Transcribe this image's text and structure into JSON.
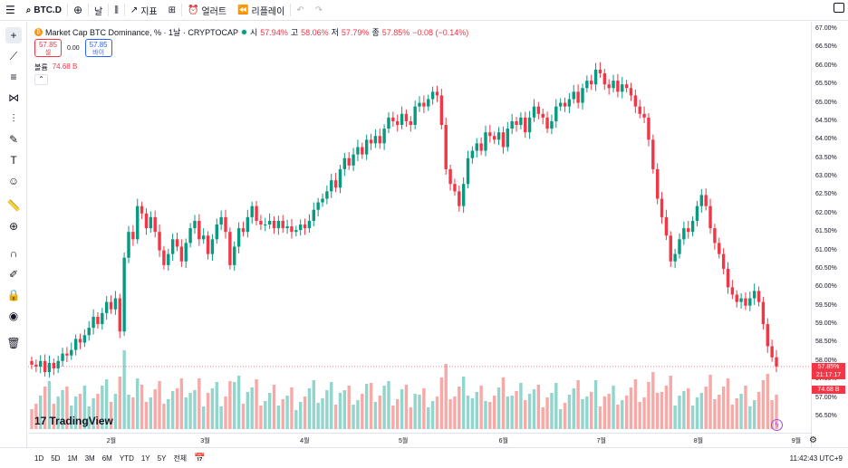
{
  "topbar": {
    "symbol": "BTC.D",
    "interval": "날",
    "indicators_label": "지표",
    "alert_label": "얼러트",
    "replay_label": "리플레이"
  },
  "legend": {
    "title": "Market Cap BTC Dominance, % · 1날 · CRYPTOCAP",
    "open_label": "시",
    "open": "57.94%",
    "high_label": "고",
    "high": "58.06%",
    "low_label": "저",
    "low": "57.79%",
    "close_label": "종",
    "close": "57.85%",
    "change": "−0.08 (−0.14%)"
  },
  "trade": {
    "sell_price": "57.85",
    "sell_label": "셀",
    "spread": "0.00",
    "buy_price": "57.85",
    "buy_label": "바이"
  },
  "volume": {
    "label": "볼륨",
    "value": "74.68 B"
  },
  "logo_text": "TradingView",
  "price_axis": [
    "67.00%",
    "66.50%",
    "66.00%",
    "65.50%",
    "65.00%",
    "64.50%",
    "64.00%",
    "63.50%",
    "63.00%",
    "62.50%",
    "62.00%",
    "61.50%",
    "61.00%",
    "60.50%",
    "60.00%",
    "59.50%",
    "59.00%",
    "58.50%",
    "58.00%",
    "57.50%",
    "57.00%",
    "56.50%"
  ],
  "price_tag": {
    "price": "57.85%",
    "countdown": "21:17:17",
    "volume": "74.68 B"
  },
  "time_axis": [
    "2월",
    "3월",
    "4월",
    "5월",
    "6월",
    "7월",
    "8월",
    "9월"
  ],
  "ranges": [
    "1D",
    "5D",
    "1M",
    "3M",
    "6M",
    "YTD",
    "1Y",
    "5Y",
    "전체"
  ],
  "clock": "11:42:43 UTC+9",
  "colors": {
    "up": "#089981",
    "down": "#f23645",
    "vol_up": "#91d5cc",
    "vol_down": "#f7a9a7"
  },
  "chart_data": {
    "type": "candlestick",
    "ylim": [
      56.4,
      67.1
    ],
    "months": [
      "2월",
      "3월",
      "4월",
      "5월",
      "6월",
      "7월",
      "8월",
      "9월"
    ],
    "closes": [
      57.9,
      57.85,
      58.0,
      57.7,
      57.95,
      57.8,
      58.0,
      58.2,
      58.15,
      58.3,
      58.6,
      58.5,
      58.7,
      58.9,
      59.2,
      59.0,
      59.3,
      59.6,
      59.4,
      59.7,
      58.8,
      60.8,
      61.5,
      61.3,
      62.2,
      62.0,
      61.6,
      61.9,
      61.5,
      61.0,
      60.6,
      60.9,
      61.3,
      61.1,
      60.7,
      61.2,
      61.6,
      61.8,
      61.3,
      61.4,
      60.9,
      61.3,
      61.7,
      61.9,
      61.5,
      60.6,
      61.1,
      61.6,
      61.5,
      61.9,
      62.2,
      61.8,
      61.7,
      61.7,
      61.8,
      61.6,
      61.8,
      61.6,
      61.65,
      61.5,
      61.55,
      61.7,
      61.6,
      61.8,
      62.1,
      62.3,
      62.4,
      62.6,
      62.9,
      62.7,
      63.2,
      63.5,
      63.3,
      63.6,
      63.8,
      63.6,
      64.0,
      63.9,
      64.1,
      63.9,
      64.3,
      64.6,
      64.5,
      64.4,
      64.7,
      64.5,
      64.4,
      64.9,
      65.0,
      64.9,
      65.1,
      65.3,
      65.2,
      64.4,
      63.2,
      62.8,
      62.6,
      62.2,
      62.8,
      63.5,
      63.7,
      63.9,
      63.7,
      64.2,
      64.1,
      64.0,
      64.2,
      63.8,
      64.3,
      64.5,
      64.4,
      64.6,
      64.2,
      64.6,
      64.9,
      64.7,
      64.6,
      64.3,
      64.5,
      64.9,
      65.0,
      64.9,
      65.1,
      65.3,
      65.0,
      65.4,
      65.6,
      65.5,
      65.9,
      65.8,
      65.5,
      65.4,
      65.6,
      65.3,
      65.5,
      65.4,
      65.2,
      64.9,
      64.7,
      64.6,
      64.0,
      63.2,
      62.4,
      61.9,
      61.4,
      60.7,
      60.9,
      61.3,
      61.6,
      61.5,
      61.8,
      62.2,
      62.5,
      62.2,
      61.6,
      61.2,
      60.9,
      60.5,
      60.0,
      59.8,
      59.6,
      59.7,
      59.5,
      59.7,
      59.9,
      59.6,
      59.0,
      58.4,
      58.1,
      57.85
    ]
  }
}
